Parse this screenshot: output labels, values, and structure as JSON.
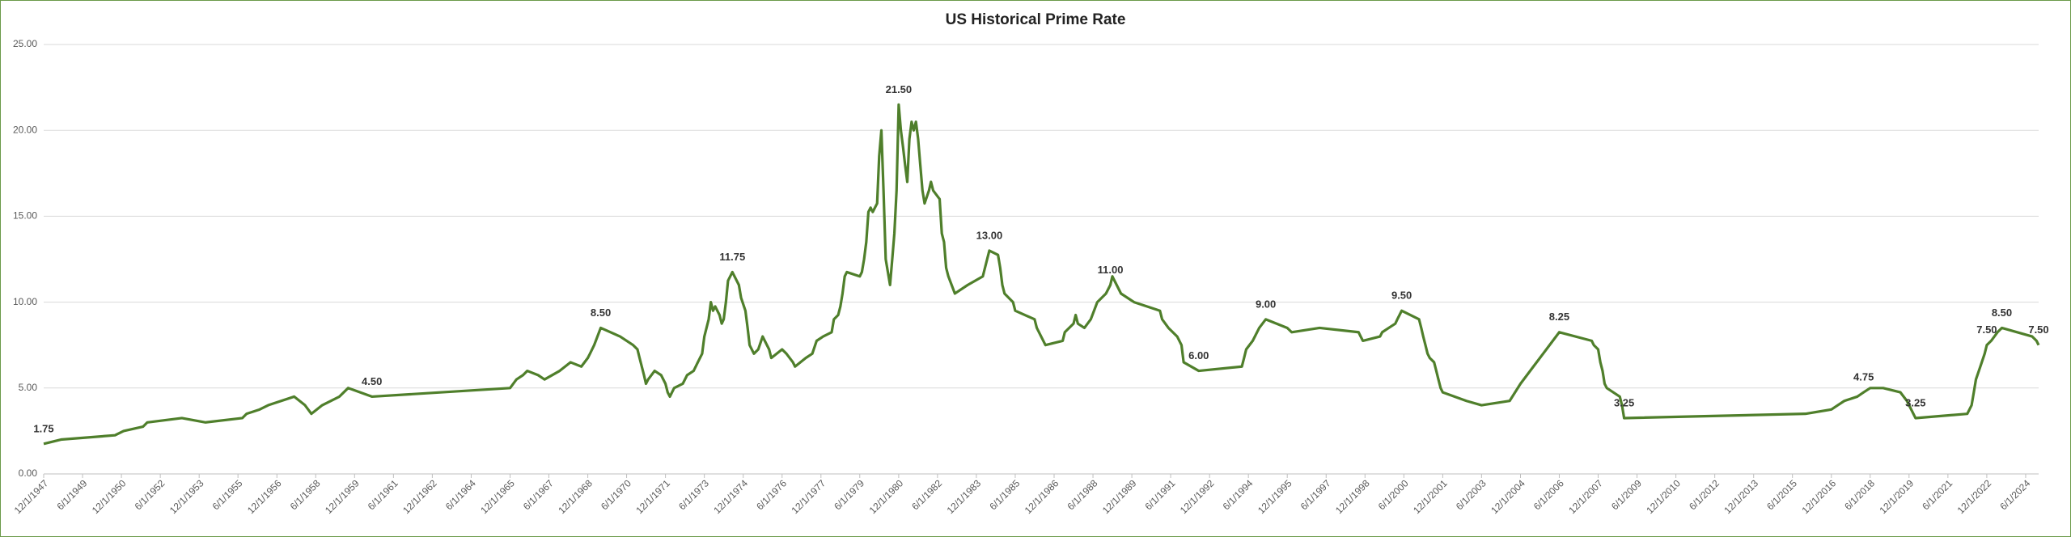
{
  "chart_data": {
    "type": "line",
    "title": "US Historical Prime Rate",
    "x": [
      "12/1/1947",
      "8/1/1948",
      "9/1/1950",
      "1/1/1951",
      "10/1/1951",
      "12/1/1951",
      "4/1/1953",
      "3/1/1954",
      "8/1/1955",
      "10/1/1955",
      "4/1/1956",
      "8/1/1956",
      "8/1/1957",
      "1/1/1958",
      "4/1/1958",
      "9/1/1958",
      "5/1/1959",
      "9/1/1959",
      "8/1/1960",
      "12/1/1965",
      "3/1/1966",
      "6/1/1966",
      "8/1/1966",
      "1/1/1967",
      "4/1/1967",
      "11/1/1967",
      "4/1/1968",
      "9/1/1968",
      "12/1/1968",
      "1/1/1969",
      "3/1/1969",
      "6/1/1969",
      "3/1/1970",
      "9/1/1970",
      "11/1/1970",
      "12/1/1970",
      "1/1/1971",
      "2/1/1971",
      "3/1/1971",
      "4/1/1971",
      "7/1/1971",
      "10/1/1971",
      "12/1/1971",
      "1/1/1972",
      "2/1/1972",
      "4/1/1972",
      "8/1/1972",
      "10/1/1972",
      "1/1/1973",
      "3/1/1973",
      "5/1/1973",
      "6/1/1973",
      "8/1/1973",
      "9/1/1973",
      "10/1/1973",
      "11/1/1973",
      "1/1/1974",
      "2/1/1974",
      "3/1/1974",
      "4/1/1974",
      "5/1/1974",
      "7/1/1974",
      "10/1/1974",
      "11/1/1974",
      "1/1/1975",
      "2/1/1975",
      "3/1/1975",
      "5/1/1975",
      "7/1/1975",
      "9/1/1975",
      "10/1/1975",
      "12/1/1975",
      "1/1/1976",
      "6/1/1976",
      "8/1/1976",
      "11/1/1976",
      "12/1/1976",
      "5/1/1977",
      "8/1/1977",
      "10/1/1977",
      "1/1/1978",
      "5/1/1978",
      "6/1/1978",
      "8/1/1978",
      "9/1/1978",
      "10/1/1978",
      "11/1/1978",
      "12/1/1978",
      "6/1/1979",
      "7/1/1979",
      "8/1/1979",
      "9/1/1979",
      "10/1/1979",
      "11/1/1979",
      "12/1/1979",
      "2/1/1980",
      "3/1/1980",
      "4/1/1980",
      "5/1/1980",
      "6/1/1980",
      "8/1/1980",
      "9/1/1980",
      "10/1/1980",
      "11/1/1980",
      "12/1/1980",
      "1/1/1981",
      "2/1/1981",
      "3/1/1981",
      "4/1/1981",
      "5/1/1981",
      "6/1/1981",
      "7/1/1981",
      "8/1/1981",
      "9/1/1981",
      "10/1/1981",
      "11/1/1981",
      "12/1/1981",
      "2/1/1982",
      "3/1/1982",
      "4/1/1982",
      "7/1/1982",
      "8/1/1982",
      "9/1/1982",
      "10/1/1982",
      "11/1/1982",
      "2/1/1983",
      "8/1/1983",
      "3/1/1984",
      "5/1/1984",
      "6/1/1984",
      "10/1/1984",
      "11/1/1984",
      "12/1/1984",
      "1/1/1985",
      "5/1/1985",
      "6/1/1985",
      "3/1/1986",
      "4/1/1986",
      "8/1/1986",
      "4/1/1987",
      "5/1/1987",
      "9/1/1987",
      "10/1/1987",
      "11/1/1987",
      "2/1/1988",
      "5/1/1988",
      "8/1/1988",
      "12/1/1988",
      "2/1/1989",
      "3/1/1989",
      "7/1/1989",
      "1/1/1990",
      "1/1/1991",
      "2/1/1991",
      "5/1/1991",
      "9/1/1991",
      "11/1/1991",
      "12/1/1991",
      "7/1/1992",
      "3/1/1994",
      "4/1/1994",
      "5/1/1994",
      "8/1/1994",
      "11/1/1994",
      "2/1/1995",
      "7/1/1995",
      "12/1/1995",
      "2/1/1996",
      "3/1/1997",
      "9/1/1998",
      "10/1/1998",
      "11/1/1998",
      "7/1/1999",
      "8/1/1999",
      "11/1/1999",
      "2/1/2000",
      "3/1/2000",
      "5/1/2000",
      "1/1/2001",
      "2/1/2001",
      "3/1/2001",
      "4/1/2001",
      "5/1/2001",
      "6/1/2001",
      "8/1/2001",
      "9/1/2001",
      "10/1/2001",
      "11/1/2001",
      "12/1/2001",
      "11/1/2002",
      "6/1/2003",
      "7/1/2004",
      "12/1/2004",
      "6/1/2005",
      "12/1/2005",
      "6/1/2006",
      "9/1/2007",
      "10/1/2007",
      "12/1/2007",
      "1/1/2008",
      "2/1/2008",
      "3/1/2008",
      "4/1/2008",
      "10/1/2008",
      "11/1/2008",
      "12/1/2008",
      "12/1/2015",
      "12/1/2016",
      "3/1/2017",
      "6/1/2017",
      "12/1/2017",
      "3/1/2018",
      "6/1/2018",
      "12/1/2018",
      "8/1/2019",
      "11/1/2019",
      "3/1/2020",
      "3/1/2022",
      "5/1/2022",
      "6/1/2022",
      "7/1/2022",
      "9/1/2022",
      "11/1/2022",
      "12/1/2022",
      "2/1/2023",
      "5/1/2023",
      "7/1/2023",
      "9/1/2024",
      "11/1/2024",
      "12/1/2024"
    ],
    "values": [
      1.75,
      2,
      2.25,
      2.5,
      2.75,
      3,
      3.25,
      3,
      3.25,
      3.5,
      3.75,
      4,
      4.5,
      4,
      3.5,
      4,
      4.5,
      5,
      4.5,
      5,
      5.5,
      5.75,
      6,
      5.75,
      5.5,
      6,
      6.5,
      6.25,
      6.75,
      7,
      7.5,
      8.5,
      8,
      7.5,
      7.25,
      6.75,
      6.25,
      5.75,
      5.25,
      5.5,
      6,
      5.75,
      5.25,
      4.75,
      4.5,
      5,
      5.25,
      5.75,
      6,
      6.5,
      7,
      8,
      9,
      10,
      9.5,
      9.75,
      9.25,
      8.75,
      9,
      10,
      11.25,
      11.75,
      11,
      10.25,
      9.5,
      8.5,
      7.5,
      7,
      7.25,
      8,
      7.75,
      7.25,
      6.75,
      7.25,
      7,
      6.5,
      6.25,
      6.75,
      7,
      7.75,
      8,
      8.25,
      9,
      9.25,
      9.75,
      10.5,
      11.5,
      11.75,
      11.5,
      11.75,
      12.5,
      13.5,
      15.25,
      15.5,
      15.25,
      15.75,
      18.5,
      20,
      16.5,
      12.5,
      11,
      12.5,
      14,
      16.5,
      21.5,
      20,
      19,
      18,
      17,
      19.5,
      20.5,
      20,
      20.5,
      19.5,
      18,
      16.5,
      15.75,
      16.5,
      17,
      16.5,
      16,
      14,
      13.5,
      12,
      11.5,
      10.5,
      11,
      11.5,
      12.5,
      13,
      12.75,
      12,
      11,
      10.5,
      10,
      9.5,
      9,
      8.5,
      7.5,
      7.75,
      8.25,
      8.75,
      9.25,
      8.75,
      8.5,
      9,
      10,
      10.5,
      11,
      11.5,
      10.5,
      10,
      9.5,
      9,
      8.5,
      8,
      7.5,
      6.5,
      6,
      6.25,
      6.75,
      7.25,
      7.75,
      8.5,
      9,
      8.75,
      8.5,
      8.25,
      8.5,
      8.25,
      8,
      7.75,
      8,
      8.25,
      8.5,
      8.75,
      9,
      9.5,
      9,
      8.5,
      8,
      7.5,
      7,
      6.75,
      6.5,
      6,
      5.5,
      5,
      4.75,
      4.25,
      4,
      4.25,
      5.25,
      6.25,
      7.25,
      8.25,
      7.75,
      7.5,
      7.25,
      6.5,
      6,
      5.25,
      5,
      4.5,
      4,
      3.25,
      3.5,
      3.75,
      4,
      4.25,
      4.5,
      4.75,
      5,
      5,
      4.75,
      4.25,
      3.25,
      3.5,
      4,
      4.75,
      5.5,
      6.25,
      7,
      7.5,
      7.75,
      8.25,
      8.5,
      8,
      7.75,
      7.5
    ],
    "value_labels": [
      "1.75",
      null,
      null,
      null,
      null,
      null,
      null,
      null,
      null,
      null,
      null,
      null,
      null,
      null,
      null,
      null,
      null,
      null,
      "4.50",
      null,
      null,
      null,
      null,
      null,
      null,
      null,
      null,
      null,
      null,
      null,
      null,
      "8.50",
      null,
      null,
      null,
      null,
      null,
      null,
      null,
      null,
      null,
      null,
      null,
      null,
      null,
      null,
      null,
      null,
      null,
      null,
      null,
      null,
      null,
      null,
      null,
      null,
      null,
      null,
      null,
      null,
      null,
      "11.75",
      null,
      null,
      null,
      null,
      null,
      null,
      null,
      null,
      null,
      null,
      null,
      null,
      null,
      null,
      null,
      null,
      null,
      null,
      null,
      null,
      null,
      null,
      null,
      null,
      null,
      null,
      null,
      null,
      null,
      null,
      null,
      null,
      null,
      null,
      null,
      null,
      null,
      null,
      null,
      null,
      null,
      null,
      "21.50",
      null,
      null,
      null,
      null,
      null,
      null,
      null,
      null,
      null,
      null,
      null,
      null,
      null,
      null,
      null,
      null,
      null,
      null,
      null,
      null,
      null,
      null,
      null,
      null,
      "13.00",
      null,
      null,
      null,
      null,
      null,
      null,
      null,
      null,
      null,
      null,
      null,
      null,
      null,
      null,
      null,
      null,
      null,
      null,
      "11.00",
      null,
      null,
      null,
      null,
      null,
      null,
      null,
      null,
      null,
      "6.00",
      null,
      null,
      null,
      null,
      null,
      "9.00",
      null,
      null,
      null,
      null,
      null,
      null,
      null,
      null,
      null,
      null,
      null,
      null,
      "9.50",
      null,
      null,
      null,
      null,
      null,
      null,
      null,
      null,
      null,
      null,
      null,
      null,
      null,
      null,
      null,
      null,
      null,
      "8.25",
      null,
      null,
      null,
      null,
      null,
      null,
      null,
      null,
      null,
      "3.25",
      null,
      null,
      null,
      null,
      null,
      "4.75",
      null,
      null,
      null,
      null,
      "3.25",
      null,
      null,
      null,
      null,
      null,
      null,
      "7.50",
      null,
      null,
      "8.50",
      null,
      null,
      "7.50"
    ],
    "color": "#4f7f2b",
    "xlim": [
      "12/1/1947",
      "12/1/2024"
    ],
    "xticks": [
      "12/1/1947",
      "6/1/1949",
      "12/1/1950",
      "6/1/1952",
      "12/1/1953",
      "6/1/1955",
      "12/1/1956",
      "6/1/1958",
      "12/1/1959",
      "6/1/1961",
      "12/1/1962",
      "6/1/1964",
      "12/1/1965",
      "6/1/1967",
      "12/1/1968",
      "6/1/1970",
      "12/1/1971",
      "6/1/1973",
      "12/1/1974",
      "6/1/1976",
      "12/1/1977",
      "6/1/1979",
      "12/1/1980",
      "6/1/1982",
      "12/1/1983",
      "6/1/1985",
      "12/1/1986",
      "6/1/1988",
      "12/1/1989",
      "6/1/1991",
      "12/1/1992",
      "6/1/1994",
      "12/1/1995",
      "6/1/1997",
      "12/1/1998",
      "6/1/2000",
      "12/1/2001",
      "6/1/2003",
      "12/1/2004",
      "6/1/2006",
      "12/1/2007",
      "6/1/2009",
      "12/1/2010",
      "6/1/2012",
      "12/1/2013",
      "6/1/2015",
      "12/1/2016",
      "6/1/2018",
      "12/1/2019",
      "6/1/2021",
      "12/1/2022",
      "6/1/2024"
    ],
    "ylim": [
      0,
      25
    ],
    "yticks": [
      {
        "value": 0,
        "label": "0.00"
      },
      {
        "value": 5,
        "label": "5.00"
      },
      {
        "value": 10,
        "label": "10.00"
      },
      {
        "value": 15,
        "label": "15.00"
      },
      {
        "value": 20,
        "label": "20.00"
      },
      {
        "value": 25,
        "label": "25.00"
      }
    ],
    "grid": true
  }
}
